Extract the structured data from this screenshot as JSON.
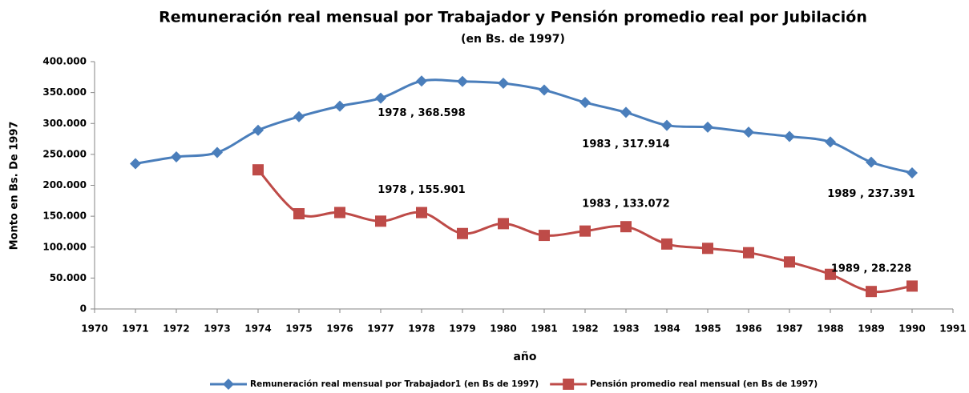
{
  "chart_data": {
    "type": "line",
    "title": "Remuneración real mensual por Trabajador y Pensión promedio real por Jubilación",
    "subtitle": "(en Bs. de 1997)",
    "x_label": "año",
    "y_label": "Monto en Bs. De 1997",
    "x": [
      1971,
      1972,
      1973,
      1974,
      1975,
      1976,
      1977,
      1978,
      1979,
      1980,
      1981,
      1982,
      1983,
      1984,
      1985,
      1986,
      1987,
      1988,
      1989,
      1990
    ],
    "series": [
      {
        "name": "Remuneración real mensual por Trabajador1 (en Bs de 1997)",
        "color": "#4a7ebb",
        "marker": "diamond",
        "values": [
          235000,
          246000,
          253000,
          289000,
          311000,
          328000,
          341000,
          368598,
          368000,
          365000,
          354000,
          334000,
          317914,
          297000,
          294000,
          286000,
          279000,
          270000,
          237391,
          220000
        ],
        "value_labels": [
          null,
          null,
          null,
          null,
          null,
          null,
          null,
          "1978 , 368.598",
          null,
          null,
          null,
          null,
          "1983 , 317.914",
          null,
          null,
          null,
          null,
          null,
          "1989 , 237.391",
          null
        ]
      },
      {
        "name": "Pensión promedio real mensual (en Bs de 1997)",
        "color": "#be4b48",
        "marker": "square",
        "values": [
          null,
          null,
          null,
          225000,
          154000,
          156000,
          142000,
          155901,
          122000,
          138000,
          119000,
          126000,
          133072,
          105000,
          98000,
          91000,
          76000,
          56000,
          28228,
          37000
        ],
        "value_labels": [
          null,
          null,
          null,
          null,
          null,
          null,
          null,
          "1978 , 155.901",
          null,
          null,
          null,
          null,
          "1983 , 133.072",
          null,
          null,
          null,
          null,
          null,
          "1989 , 28.228",
          null
        ]
      }
    ],
    "xlim": [
      1970,
      1991
    ],
    "xticks": [
      1970,
      1971,
      1972,
      1973,
      1974,
      1975,
      1976,
      1977,
      1978,
      1979,
      1980,
      1981,
      1982,
      1983,
      1984,
      1985,
      1986,
      1987,
      1988,
      1989,
      1990,
      1991
    ],
    "ylim": [
      0,
      400000
    ],
    "yticks": [
      0,
      {
        "value": 50000,
        "label": "50.000"
      },
      {
        "value": 100000,
        "label": "100.000"
      },
      {
        "value": 150000,
        "label": "150.000"
      },
      {
        "value": 200000,
        "label": "200.000"
      },
      {
        "value": 250000,
        "label": "250.000"
      },
      {
        "value": 300000,
        "label": "300.000"
      },
      {
        "value": 350000,
        "label": "350.000"
      },
      {
        "value": 400000,
        "label": "400.000"
      }
    ],
    "legend": "bottom",
    "grid": false
  }
}
